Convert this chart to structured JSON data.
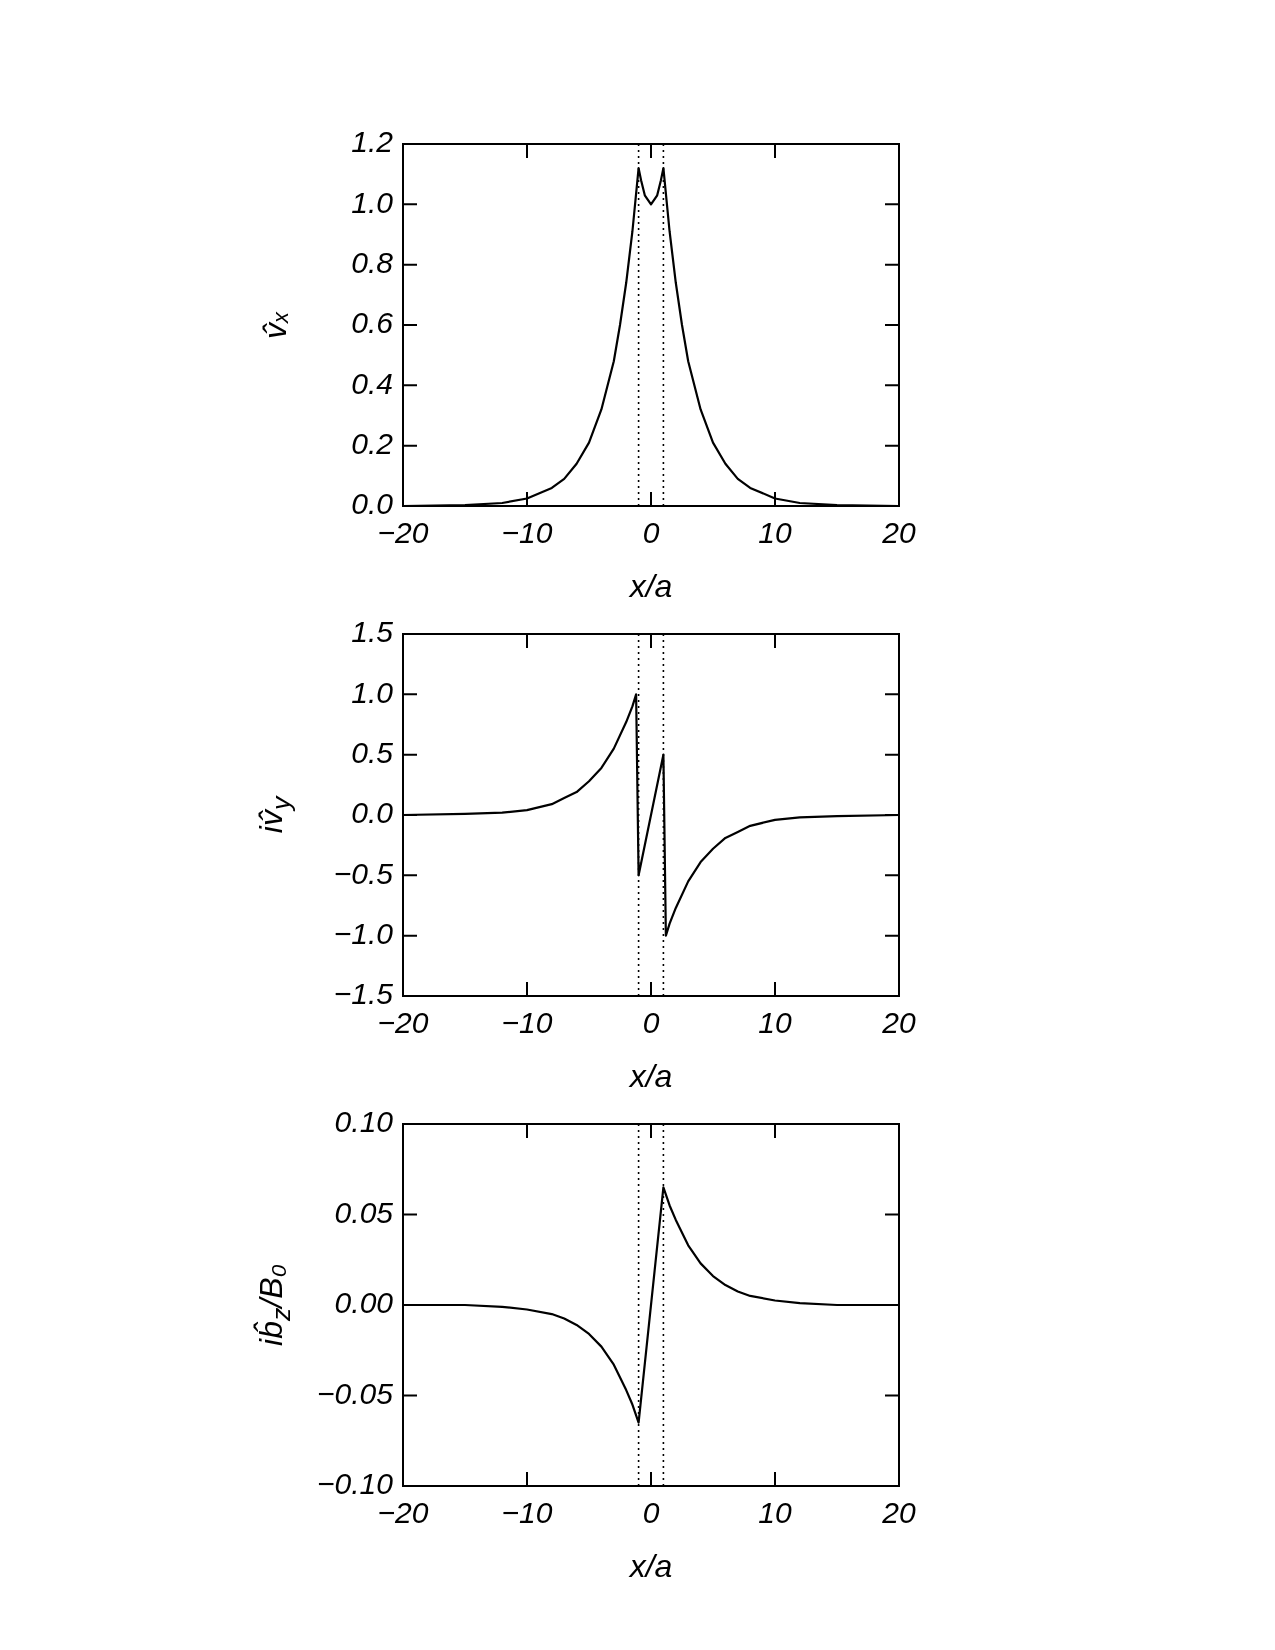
{
  "chart_data": [
    {
      "type": "line",
      "ylabel": "v̂ₓ",
      "xlabel": "x/a",
      "color": "#000000",
      "marker": "none",
      "line_style": "solid",
      "x": [
        -20,
        -15,
        -12,
        -10,
        -8,
        -7,
        -6,
        -5,
        -4,
        -3,
        -2.5,
        -2,
        -1.5,
        -1,
        -0.8,
        -0.5,
        0,
        0.5,
        0.8,
        1,
        1.5,
        2,
        2.5,
        3,
        4,
        5,
        6,
        7,
        8,
        10,
        12,
        15,
        20
      ],
      "values": [
        0,
        0.003,
        0.01,
        0.025,
        0.06,
        0.09,
        0.14,
        0.21,
        0.32,
        0.48,
        0.6,
        0.74,
        0.91,
        1.12,
        1.08,
        1.03,
        1.0,
        1.03,
        1.08,
        1.12,
        0.91,
        0.74,
        0.6,
        0.48,
        0.32,
        0.21,
        0.14,
        0.09,
        0.06,
        0.025,
        0.01,
        0.003,
        0
      ],
      "xlim": [
        -20,
        20
      ],
      "xticks": [
        -20,
        -10,
        0,
        10,
        20
      ],
      "ylim": [
        0,
        1.2
      ],
      "yticks": [
        {
          "value": 0,
          "label": "0.0"
        },
        0.2,
        0.4,
        0.6,
        0.8,
        {
          "value": 1,
          "label": "1.0"
        },
        1.2
      ],
      "ref_lines": [
        {
          "axis": "x",
          "value": -1,
          "color": "#000000",
          "line_style": "dotted"
        },
        {
          "axis": "x",
          "value": 1,
          "color": "#000000",
          "line_style": "dotted"
        }
      ]
    },
    {
      "type": "line",
      "ylabel": "iv̂$_{y}$",
      "xlabel": "x/a",
      "color": "#000000",
      "marker": "none",
      "line_style": "solid",
      "x": [
        -20,
        -15,
        -12,
        -10,
        -8,
        -7,
        -6,
        -5,
        -4,
        -3,
        -2,
        -1.5,
        -1.2,
        -1,
        1,
        1.2,
        1.5,
        2,
        3,
        4,
        5,
        6,
        7,
        8,
        10,
        12,
        15,
        20
      ],
      "values": [
        0,
        0.01,
        0.02,
        0.04,
        0.09,
        0.14,
        0.19,
        0.28,
        0.39,
        0.55,
        0.77,
        0.9,
        1.0,
        -0.5,
        0.5,
        -1.0,
        -0.9,
        -0.77,
        -0.55,
        -0.39,
        -0.28,
        -0.19,
        -0.14,
        -0.09,
        -0.04,
        -0.02,
        -0.01,
        0
      ],
      "xlim": [
        -20,
        20
      ],
      "xticks": [
        -20,
        -10,
        0,
        10,
        20
      ],
      "ylim": [
        -1.5,
        1.5
      ],
      "yticks": [
        {
          "value": -1.5,
          "label": "−1.5"
        },
        {
          "value": -1,
          "label": "−1.0"
        },
        {
          "value": -0.5,
          "label": "−0.5"
        },
        {
          "value": 0,
          "label": "0.0"
        },
        0.5,
        {
          "value": 1,
          "label": "1.0"
        },
        1.5
      ],
      "ref_lines": [
        {
          "axis": "x",
          "value": -1,
          "color": "#000000",
          "line_style": "dotted"
        },
        {
          "axis": "x",
          "value": 1,
          "color": "#000000",
          "line_style": "dotted"
        }
      ]
    },
    {
      "type": "line",
      "ylabel": "ib̂$_{z}$/B₀",
      "xlabel": "x/a",
      "color": "#000000",
      "marker": "none",
      "line_style": "solid",
      "x": [
        -20,
        -15,
        -12,
        -10,
        -8,
        -7,
        -6,
        -5,
        -4,
        -3,
        -2,
        -1.5,
        -1,
        1,
        1.5,
        2,
        3,
        4,
        5,
        6,
        7,
        8,
        10,
        12,
        15,
        20
      ],
      "values": [
        0,
        0,
        -0.001,
        -0.0025,
        -0.005,
        -0.0075,
        -0.011,
        -0.016,
        -0.023,
        -0.033,
        -0.047,
        -0.055,
        -0.065,
        0.065,
        0.055,
        0.047,
        0.033,
        0.023,
        0.016,
        0.011,
        0.0075,
        0.005,
        0.0025,
        0.001,
        0,
        0
      ],
      "xlim": [
        -20,
        20
      ],
      "xticks": [
        -20,
        -10,
        0,
        10,
        20
      ],
      "ylim": [
        -0.1,
        0.1
      ],
      "yticks": [
        {
          "value": -0.1,
          "label": "−0.10"
        },
        {
          "value": -0.05,
          "label": "−0.05"
        },
        {
          "value": 0,
          "label": "0.00"
        },
        0.05,
        {
          "value": 0.1,
          "label": "0.10"
        }
      ],
      "ref_lines": [
        {
          "axis": "x",
          "value": -1,
          "color": "#000000",
          "line_style": "dotted"
        },
        {
          "axis": "x",
          "value": 1,
          "color": "#000000",
          "line_style": "dotted"
        }
      ]
    }
  ]
}
